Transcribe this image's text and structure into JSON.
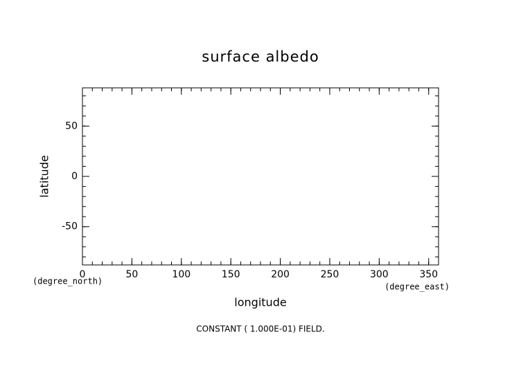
{
  "chart_data": {
    "type": "contour",
    "title": "surface albedo",
    "xlabel": "longitude",
    "ylabel": "latitude",
    "xunit": "(degree_east)",
    "yunit": "(degree_north)",
    "annotation": "CONSTANT ( 1.000E-01) FIELD.",
    "xlim": [
      0,
      360
    ],
    "ylim": [
      -88,
      88
    ],
    "xticks": [
      0,
      50,
      100,
      150,
      200,
      250,
      300,
      350
    ],
    "yticks": [
      -50,
      0,
      50
    ],
    "xminorticks": [
      0,
      10,
      20,
      30,
      40,
      50,
      60,
      70,
      80,
      90,
      100,
      110,
      120,
      130,
      140,
      150,
      160,
      170,
      180,
      190,
      200,
      210,
      220,
      230,
      240,
      250,
      260,
      270,
      280,
      290,
      300,
      310,
      320,
      330,
      340,
      350,
      360
    ],
    "yminorticks": [
      -80,
      -70,
      -60,
      -50,
      -40,
      -30,
      -20,
      -10,
      0,
      10,
      20,
      30,
      40,
      50,
      60,
      70,
      80
    ],
    "color": "#000000"
  }
}
